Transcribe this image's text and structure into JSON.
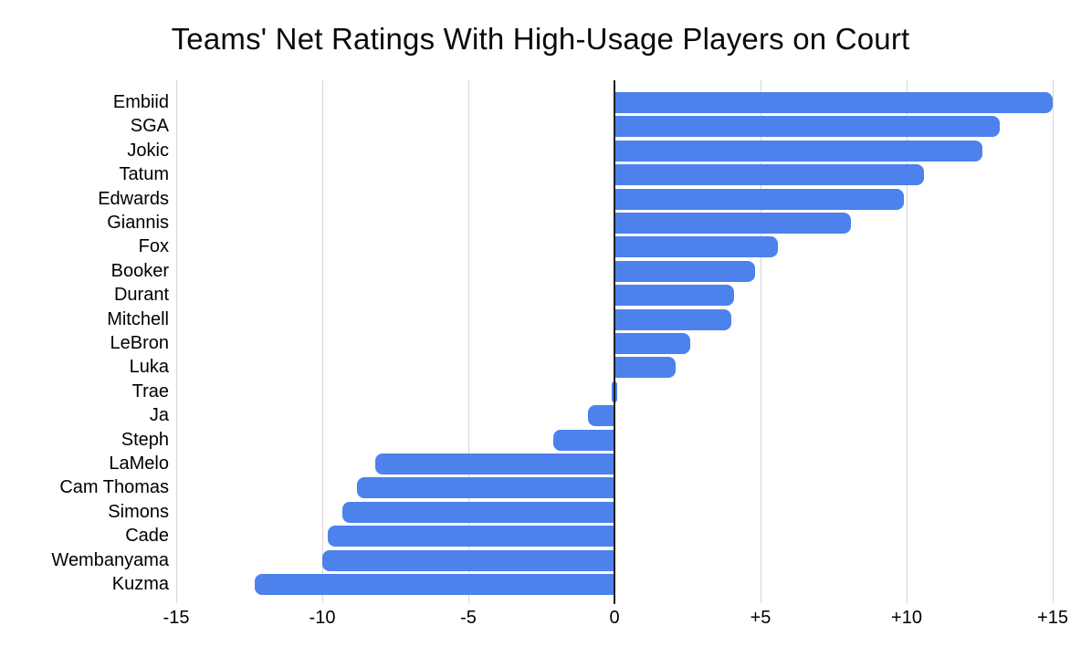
{
  "chart_data": {
    "type": "bar",
    "orientation": "horizontal",
    "title": "Teams' Net Ratings With High-Usage Players on Court",
    "categories": [
      "Embiid",
      "SGA",
      "Jokic",
      "Tatum",
      "Edwards",
      "Giannis",
      "Fox",
      "Booker",
      "Durant",
      "Mitchell",
      "LeBron",
      "Luka",
      "Trae",
      "Ja",
      "Steph",
      "LaMelo",
      "Cam Thomas",
      "Simons",
      "Cade",
      "Wembanyama",
      "Kuzma"
    ],
    "values": [
      15.0,
      13.2,
      12.6,
      10.6,
      9.9,
      8.1,
      5.6,
      4.8,
      4.1,
      4.0,
      2.6,
      2.1,
      0.0,
      -0.9,
      -2.1,
      -8.2,
      -8.8,
      -9.3,
      -9.8,
      -10.0,
      -12.3
    ],
    "xlabel": "",
    "ylabel": "",
    "xlim": [
      -15,
      15
    ],
    "x_tick_values": [
      -15,
      -10,
      -5,
      0,
      5,
      10,
      15
    ],
    "x_tick_labels": [
      "-15",
      "-10",
      "-5",
      "0",
      "+5",
      "+10",
      "+15"
    ],
    "grid": "vertical-only",
    "legend": "none",
    "sort_order": "descending",
    "colors": {
      "bar": "#4d81eb",
      "gridline": "#d6d6d6",
      "zero_line": "#1f1f1f",
      "text": "#000000",
      "background": "#ffffff"
    }
  }
}
